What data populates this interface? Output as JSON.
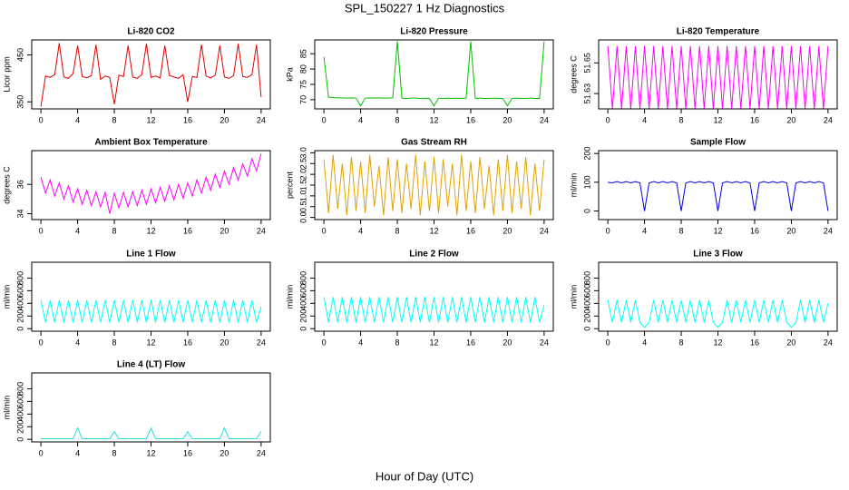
{
  "title": "SPL_150227  1 Hz Diagnostics",
  "xlabel": "Hour of Day (UTC)",
  "chart_data": [
    {
      "type": "line",
      "title": "Li-820 CO2",
      "ylabel": "Licor ppm",
      "color": "#e00000",
      "x": [
        0,
        0.5,
        1,
        1.5,
        2,
        2.5,
        3,
        3.5,
        4,
        4.5,
        5,
        5.5,
        6,
        6.5,
        7,
        7.5,
        8,
        8.5,
        9,
        9.5,
        10,
        10.5,
        11,
        11.5,
        12,
        12.5,
        13,
        13.5,
        14,
        14.5,
        15,
        15.5,
        16,
        16.5,
        17,
        17.5,
        18,
        18.5,
        19,
        19.5,
        20,
        20.5,
        21,
        21.5,
        22,
        22.5,
        23,
        23.5,
        24
      ],
      "values": [
        340,
        405,
        402,
        408,
        475,
        403,
        400,
        410,
        470,
        404,
        401,
        406,
        472,
        398,
        405,
        402,
        345,
        407,
        404,
        470,
        403,
        400,
        408,
        474,
        402,
        405,
        401,
        470,
        406,
        403,
        400,
        408,
        350,
        404,
        402,
        472,
        405,
        401,
        407,
        470,
        403,
        400,
        406,
        474,
        404,
        402,
        408,
        472,
        360
      ],
      "xlim": [
        -1,
        25
      ],
      "xticks": [
        0,
        4,
        8,
        12,
        16,
        20,
        24
      ],
      "ylim": [
        335,
        482
      ],
      "yticks": [
        350,
        450
      ]
    },
    {
      "type": "line",
      "title": "Li-820 Pressure",
      "ylabel": "kPa",
      "color": "#00c000",
      "x": [
        0,
        0.5,
        1,
        1.5,
        2,
        2.5,
        3,
        3.5,
        4,
        4.5,
        5,
        5.5,
        6,
        6.5,
        7,
        7.5,
        8,
        8.5,
        9,
        9.5,
        10,
        10.5,
        11,
        11.5,
        12,
        12.5,
        13,
        13.5,
        14,
        14.5,
        15,
        15.5,
        16,
        16.5,
        17,
        17.5,
        18,
        18.5,
        19,
        19.5,
        20,
        20.5,
        21,
        21.5,
        22,
        22.5,
        23,
        23.5,
        24
      ],
      "values": [
        84,
        70.8,
        70.7,
        70.6,
        70.6,
        70.5,
        70.6,
        70.5,
        68,
        70.5,
        70.6,
        70.5,
        70.6,
        70.5,
        70.5,
        70.6,
        89,
        70.5,
        70.4,
        70.5,
        70.5,
        70.4,
        70.5,
        70.4,
        68,
        70.5,
        70.4,
        70.5,
        70.4,
        70.5,
        70.4,
        70.5,
        89,
        70.4,
        70.5,
        70.4,
        70.4,
        70.5,
        70.4,
        70.4,
        68,
        70.4,
        70.5,
        70.4,
        70.4,
        70.5,
        70.4,
        70.4,
        89
      ],
      "xlim": [
        -1,
        25
      ],
      "xticks": [
        0,
        4,
        8,
        12,
        16,
        20,
        24
      ],
      "ylim": [
        67,
        89.5
      ],
      "yticks": [
        70,
        75,
        80,
        85
      ]
    },
    {
      "type": "line",
      "title": "Li-820 Temperature",
      "ylabel": "degrees C",
      "color": "#ff00ff",
      "x": [
        0,
        0.5,
        1,
        1.5,
        2,
        2.5,
        3,
        3.5,
        4,
        4.5,
        5,
        5.5,
        6,
        6.5,
        7,
        7.5,
        8,
        8.5,
        9,
        9.5,
        10,
        10.5,
        11,
        11.5,
        12,
        12.5,
        13,
        13.5,
        14,
        14.5,
        15,
        15.5,
        16,
        16.5,
        17,
        17.5,
        18,
        18.5,
        19,
        19.5,
        20,
        20.5,
        21,
        21.5,
        22,
        22.5,
        23,
        23.5,
        24
      ],
      "values": [
        51.661,
        51.62,
        51.661,
        51.62,
        51.661,
        51.62,
        51.661,
        51.62,
        51.661,
        51.62,
        51.661,
        51.62,
        51.661,
        51.62,
        51.661,
        51.62,
        51.661,
        51.62,
        51.661,
        51.62,
        51.661,
        51.62,
        51.661,
        51.62,
        51.661,
        51.62,
        51.661,
        51.62,
        51.661,
        51.62,
        51.661,
        51.62,
        51.661,
        51.62,
        51.661,
        51.62,
        51.661,
        51.62,
        51.661,
        51.62,
        51.661,
        51.62,
        51.661,
        51.62,
        51.661,
        51.62,
        51.661,
        51.62,
        51.661
      ],
      "xlim": [
        -1,
        25
      ],
      "xticks": [
        0,
        4,
        8,
        12,
        16,
        20,
        24
      ],
      "ylim": [
        51.62,
        51.665
      ],
      "yticks": [
        51.63,
        51.65
      ]
    },
    {
      "type": "line",
      "title": "Ambient Box Temperature",
      "ylabel": "degrees C",
      "color": "#ff00ff",
      "x": [
        0,
        0.5,
        1,
        1.5,
        2,
        2.5,
        3,
        3.5,
        4,
        4.5,
        5,
        5.5,
        6,
        6.5,
        7,
        7.5,
        8,
        8.5,
        9,
        9.5,
        10,
        10.5,
        11,
        11.5,
        12,
        12.5,
        13,
        13.5,
        14,
        14.5,
        15,
        15.5,
        16,
        16.5,
        17,
        17.5,
        18,
        18.5,
        19,
        19.5,
        20,
        20.5,
        21,
        21.5,
        22,
        22.5,
        23,
        23.5,
        24
      ],
      "values": [
        36.5,
        35.4,
        36.3,
        35.2,
        36.1,
        35.0,
        35.9,
        34.8,
        35.7,
        34.65,
        35.6,
        34.55,
        35.5,
        34.47,
        35.45,
        34.0,
        35.4,
        34.4,
        35.45,
        34.47,
        35.5,
        34.55,
        35.6,
        34.65,
        35.7,
        34.75,
        35.8,
        34.85,
        35.9,
        34.95,
        36.0,
        35.05,
        36.1,
        35.2,
        36.3,
        35.4,
        36.5,
        35.6,
        36.7,
        35.8,
        36.9,
        36.02,
        37.15,
        36.28,
        37.4,
        36.57,
        37.75,
        36.92,
        38.1
      ],
      "xlim": [
        -1,
        25
      ],
      "xticks": [
        0,
        4,
        8,
        12,
        16,
        20,
        24
      ],
      "ylim": [
        33.6,
        38.3
      ],
      "yticks": [
        34,
        36
      ]
    },
    {
      "type": "line",
      "title": "Gas Stream RH",
      "ylabel": "percent",
      "color": "#e0a000",
      "x": [
        0,
        0.5,
        1,
        1.5,
        2,
        2.5,
        3,
        3.5,
        4,
        4.5,
        5,
        5.5,
        6,
        6.5,
        7,
        7.5,
        8,
        8.5,
        9,
        9.5,
        10,
        10.5,
        11,
        11.5,
        12,
        12.5,
        13,
        13.5,
        14,
        14.5,
        15,
        15.5,
        16,
        16.5,
        17,
        17.5,
        18,
        18.5,
        19,
        19.5,
        20,
        20.5,
        21,
        21.5,
        22,
        22.5,
        23,
        23.5,
        24
      ],
      "values": [
        2.7,
        0.2,
        2.9,
        0.4,
        2.5,
        0.1,
        2.8,
        0.3,
        2.6,
        0.2,
        2.9,
        0.5,
        2.4,
        0.1,
        2.8,
        0.3,
        2.7,
        0.2,
        2.5,
        0.4,
        2.9,
        0.1,
        2.6,
        0.3,
        2.8,
        0.2,
        2.7,
        0.5,
        2.5,
        0.1,
        2.9,
        0.3,
        2.6,
        0.2,
        2.8,
        0.4,
        2.4,
        0.1,
        2.7,
        0.3,
        2.9,
        0.2,
        2.6,
        0.4,
        2.8,
        0.1,
        2.5,
        0.3,
        2.7
      ],
      "xlim": [
        -1,
        25
      ],
      "xticks": [
        0,
        4,
        8,
        12,
        16,
        20,
        24
      ],
      "ylim": [
        -0.1,
        3.1
      ],
      "yticks": [
        {
          "value": 0,
          "label": "0.0"
        },
        0.5,
        {
          "value": 1,
          "label": "1.0"
        },
        1.5,
        {
          "value": 2,
          "label": "2.0"
        },
        2.5,
        {
          "value": 3,
          "label": "3.0"
        }
      ]
    },
    {
      "type": "line",
      "title": "Sample Flow",
      "ylabel": "ml/min",
      "color": "#0000e0",
      "x": [
        0,
        0.5,
        1,
        1.5,
        2,
        2.5,
        3,
        3.5,
        4,
        4.5,
        5,
        5.5,
        6,
        6.5,
        7,
        7.5,
        8,
        8.5,
        9,
        9.5,
        10,
        10.5,
        11,
        11.5,
        12,
        12.5,
        13,
        13.5,
        14,
        14.5,
        15,
        15.5,
        16,
        16.5,
        17,
        17.5,
        18,
        18.5,
        19,
        19.5,
        20,
        20.5,
        21,
        21.5,
        22,
        22.5,
        23,
        23.5,
        24
      ],
      "values": [
        100,
        98,
        102,
        98,
        102,
        98,
        102,
        98,
        0,
        98,
        102,
        98,
        102,
        98,
        102,
        98,
        0,
        98,
        102,
        98,
        102,
        98,
        102,
        98,
        0,
        98,
        102,
        98,
        102,
        98,
        102,
        98,
        0,
        98,
        102,
        98,
        102,
        98,
        102,
        98,
        0,
        98,
        102,
        98,
        102,
        98,
        102,
        98,
        0
      ],
      "xlim": [
        -1,
        25
      ],
      "xticks": [
        0,
        4,
        8,
        12,
        16,
        20,
        24
      ],
      "ylim": [
        -30,
        210
      ],
      "yticks": [
        0,
        100,
        200
      ]
    },
    {
      "type": "line",
      "title": "Line 1 Flow",
      "ylabel": "ml/min",
      "color": "#00ffff",
      "x": [
        0,
        0.5,
        1,
        1.5,
        2,
        2.5,
        3,
        3.5,
        4,
        4.5,
        5,
        5.5,
        6,
        6.5,
        7,
        7.5,
        8,
        8.5,
        9,
        9.5,
        10,
        10.5,
        11,
        11.5,
        12,
        12.5,
        13,
        13.5,
        14,
        14.5,
        15,
        15.5,
        16,
        16.5,
        17,
        17.5,
        18,
        18.5,
        19,
        19.5,
        20,
        20.5,
        21,
        21.5,
        22,
        22.5,
        23,
        23.5,
        24
      ],
      "values": [
        450,
        100,
        450,
        100,
        450,
        100,
        450,
        100,
        450,
        100,
        450,
        100,
        450,
        100,
        450,
        100,
        450,
        100,
        450,
        100,
        450,
        100,
        450,
        100,
        450,
        100,
        450,
        100,
        450,
        100,
        450,
        100,
        450,
        100,
        450,
        100,
        450,
        100,
        450,
        100,
        450,
        100,
        450,
        100,
        450,
        100,
        450,
        100,
        350
      ],
      "xlim": [
        -1,
        25
      ],
      "xticks": [
        0,
        4,
        8,
        12,
        16,
        20,
        24
      ],
      "ylim": [
        -40,
        1050
      ],
      "yticks": [
        0,
        200,
        400,
        600,
        800
      ]
    },
    {
      "type": "line",
      "title": "Line 2 Flow",
      "ylabel": "ml/min",
      "color": "#00ffff",
      "x": [
        0,
        0.5,
        1,
        1.5,
        2,
        2.5,
        3,
        3.5,
        4,
        4.5,
        5,
        5.5,
        6,
        6.5,
        7,
        7.5,
        8,
        8.5,
        9,
        9.5,
        10,
        10.5,
        11,
        11.5,
        12,
        12.5,
        13,
        13.5,
        14,
        14.5,
        15,
        15.5,
        16,
        16.5,
        17,
        17.5,
        18,
        18.5,
        19,
        19.5,
        20,
        20.5,
        21,
        21.5,
        22,
        22.5,
        23,
        23.5,
        24
      ],
      "values": [
        500,
        100,
        500,
        100,
        500,
        100,
        500,
        100,
        500,
        100,
        500,
        100,
        500,
        100,
        500,
        100,
        500,
        100,
        500,
        100,
        500,
        100,
        500,
        100,
        500,
        100,
        500,
        100,
        500,
        100,
        500,
        100,
        500,
        100,
        500,
        100,
        500,
        100,
        500,
        100,
        500,
        100,
        500,
        100,
        500,
        100,
        500,
        100,
        380
      ],
      "xlim": [
        -1,
        25
      ],
      "xticks": [
        0,
        4,
        8,
        12,
        16,
        20,
        24
      ],
      "ylim": [
        -40,
        1050
      ],
      "yticks": [
        0,
        200,
        400,
        600,
        800
      ]
    },
    {
      "type": "line",
      "title": "Line 3 Flow",
      "ylabel": "ml/min",
      "color": "#00ffff",
      "x": [
        0,
        0.5,
        1,
        1.5,
        2,
        2.5,
        3,
        3.5,
        4,
        4.5,
        5,
        5.5,
        6,
        6.5,
        7,
        7.5,
        8,
        8.5,
        9,
        9.5,
        10,
        10.5,
        11,
        11.5,
        12,
        12.5,
        13,
        13.5,
        14,
        14.5,
        15,
        15.5,
        16,
        16.5,
        17,
        17.5,
        18,
        18.5,
        19,
        19.5,
        20,
        20.5,
        21,
        21.5,
        22,
        22.5,
        23,
        23.5,
        24
      ],
      "values": [
        450,
        100,
        450,
        100,
        450,
        100,
        450,
        100,
        20,
        100,
        450,
        100,
        450,
        100,
        450,
        100,
        450,
        100,
        450,
        100,
        450,
        100,
        450,
        100,
        20,
        100,
        450,
        100,
        450,
        100,
        450,
        100,
        450,
        100,
        450,
        100,
        450,
        100,
        450,
        100,
        20,
        100,
        450,
        100,
        450,
        100,
        450,
        100,
        400
      ],
      "xlim": [
        -1,
        25
      ],
      "xticks": [
        0,
        4,
        8,
        12,
        16,
        20,
        24
      ],
      "ylim": [
        -40,
        1050
      ],
      "yticks": [
        0,
        200,
        400,
        600,
        800
      ]
    },
    {
      "type": "line",
      "title": "Line 4 (LT) Flow",
      "ylabel": "ml/min",
      "color": "#20e0e0",
      "x": [
        0,
        0.5,
        1,
        1.5,
        2,
        2.5,
        3,
        3.5,
        4,
        4.5,
        5,
        5.5,
        6,
        6.5,
        7,
        7.5,
        8,
        8.5,
        9,
        9.5,
        10,
        10.5,
        11,
        11.5,
        12,
        12.5,
        13,
        13.5,
        14,
        14.5,
        15,
        15.5,
        16,
        16.5,
        17,
        17.5,
        18,
        18.5,
        19,
        19.5,
        20,
        20.5,
        21,
        21.5,
        22,
        22.5,
        23,
        23.5,
        24
      ],
      "values": [
        10,
        10,
        10,
        10,
        10,
        10,
        10,
        10,
        180,
        10,
        10,
        10,
        10,
        10,
        10,
        10,
        120,
        10,
        10,
        10,
        10,
        10,
        10,
        10,
        180,
        10,
        10,
        10,
        10,
        10,
        10,
        10,
        120,
        10,
        10,
        10,
        10,
        10,
        10,
        10,
        180,
        10,
        10,
        10,
        10,
        10,
        10,
        10,
        130
      ],
      "xlim": [
        -1,
        25
      ],
      "xticks": [
        0,
        4,
        8,
        12,
        16,
        20,
        24
      ],
      "ylim": [
        -40,
        1050
      ],
      "yticks": [
        0,
        200,
        400,
        600,
        800
      ]
    }
  ]
}
